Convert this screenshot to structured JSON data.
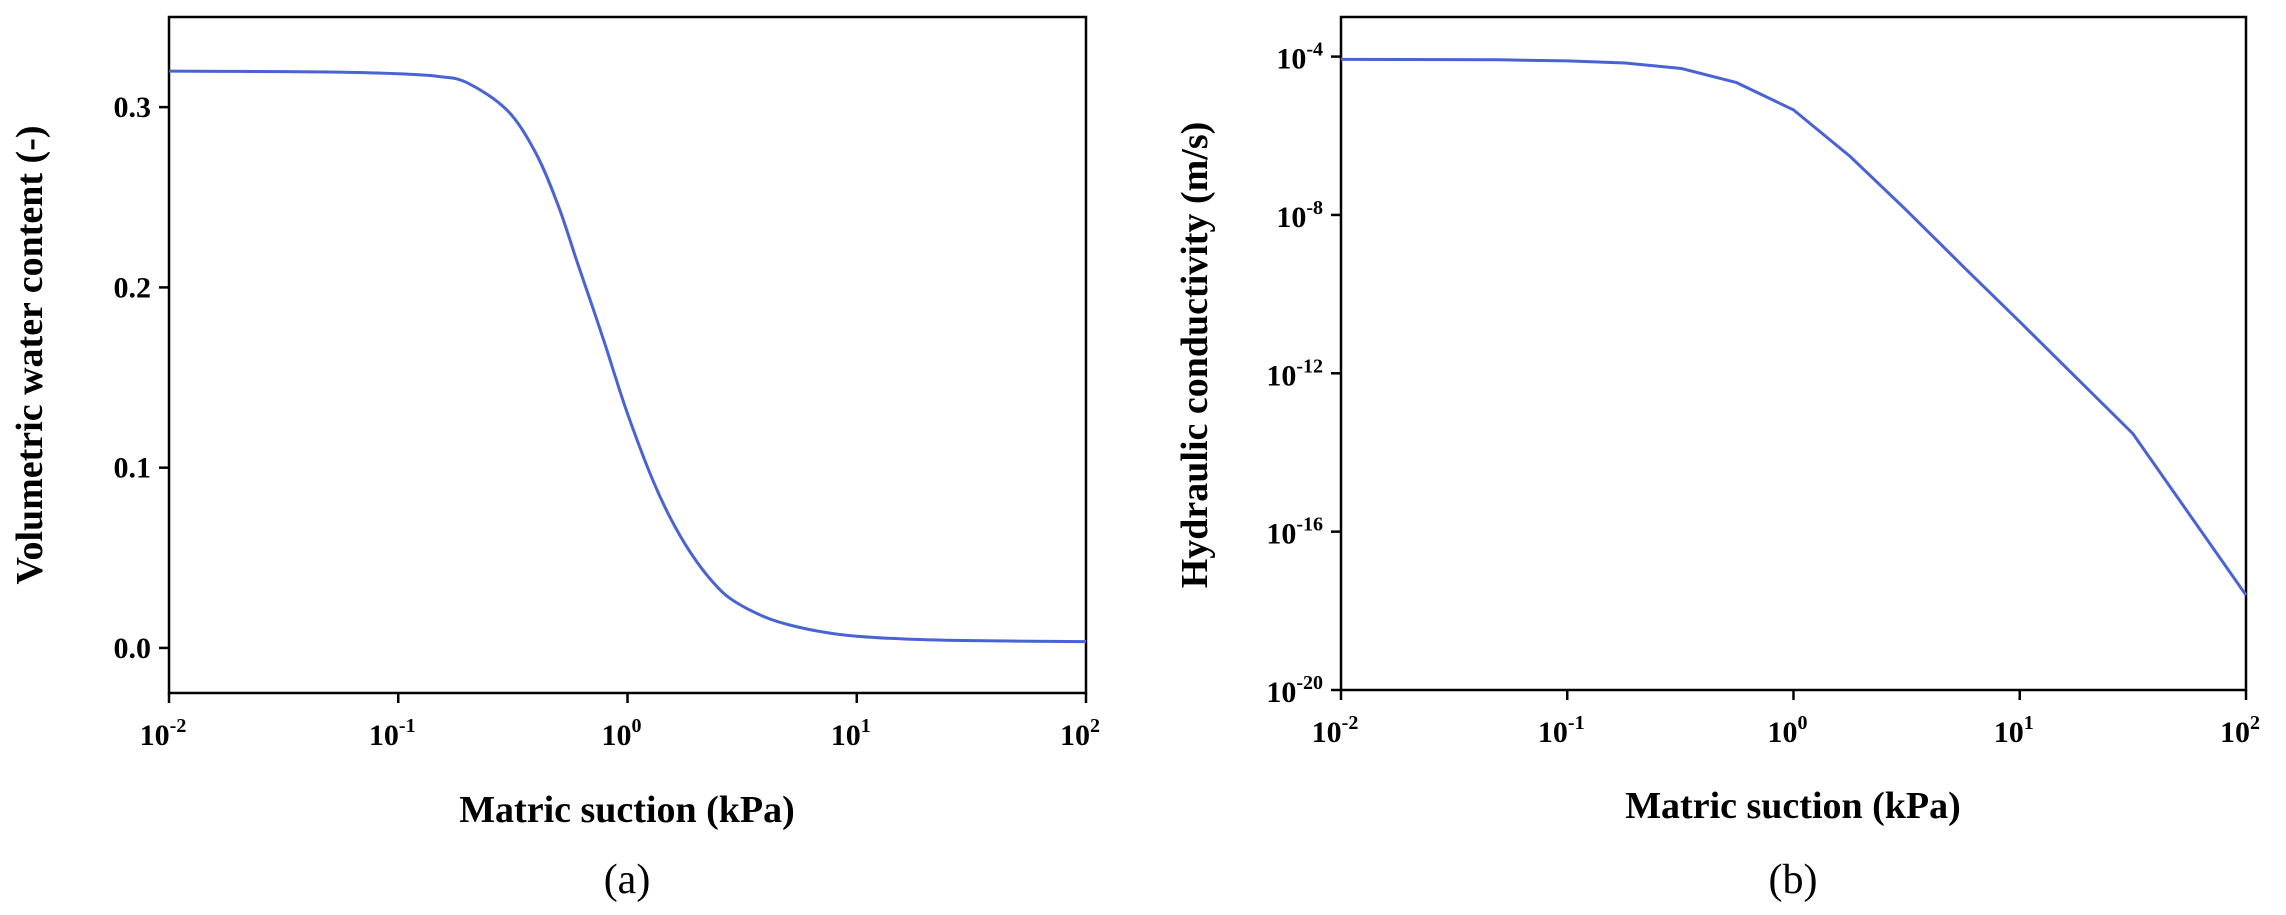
{
  "chart_data": [
    {
      "type": "line",
      "panel_label": "(a)",
      "xlabel": "Matric suction  (kPa)",
      "ylabel": "Volumetric water content (-)",
      "x_scale": "log",
      "xlim": [
        0.01,
        100
      ],
      "ylim": [
        -0.025,
        0.35
      ],
      "x_ticks": [
        {
          "base": "10",
          "exp": "-2",
          "value": 0.01
        },
        {
          "base": "10",
          "exp": "-1",
          "value": 0.1
        },
        {
          "base": "10",
          "exp": "0",
          "value": 1
        },
        {
          "base": "10",
          "exp": "1",
          "value": 10
        },
        {
          "base": "10",
          "exp": "2",
          "value": 100
        }
      ],
      "y_ticks": [
        {
          "label": "0.0",
          "value": 0.0
        },
        {
          "label": "0.1",
          "value": 0.1
        },
        {
          "label": "0.2",
          "value": 0.2
        },
        {
          "label": "0.3",
          "value": 0.3
        }
      ],
      "color": "#4a63d4",
      "x": [
        0.01,
        0.02,
        0.05,
        0.1,
        0.15,
        0.2,
        0.3,
        0.4,
        0.5,
        0.6,
        0.7,
        0.8,
        1.0,
        1.3,
        1.6,
        2.0,
        2.5,
        3.0,
        4.0,
        5.0,
        7.0,
        10.0,
        20.0,
        50.0,
        100.0
      ],
      "y": [
        0.32,
        0.3198,
        0.3195,
        0.3185,
        0.317,
        0.3135,
        0.298,
        0.274,
        0.245,
        0.215,
        0.19,
        0.168,
        0.13,
        0.092,
        0.068,
        0.048,
        0.033,
        0.025,
        0.017,
        0.013,
        0.009,
        0.0065,
        0.0045,
        0.0038,
        0.0035
      ]
    },
    {
      "type": "line",
      "panel_label": "(b)",
      "xlabel": "Matric suction  (kPa)",
      "ylabel": "Hydraulic conductivity  (m/s)",
      "x_scale": "log",
      "y_scale": "log",
      "xlim": [
        0.01,
        100
      ],
      "ylim": [
        1e-20,
        0.001
      ],
      "x_ticks": [
        {
          "base": "10",
          "exp": "-2",
          "value": 0.01
        },
        {
          "base": "10",
          "exp": "-1",
          "value": 0.1
        },
        {
          "base": "10",
          "exp": "0",
          "value": 1
        },
        {
          "base": "10",
          "exp": "1",
          "value": 10
        },
        {
          "base": "10",
          "exp": "2",
          "value": 100
        }
      ],
      "y_ticks": [
        {
          "base": "10",
          "exp": "-20",
          "value": 1e-20
        },
        {
          "base": "10",
          "exp": "-16",
          "value": 1e-16
        },
        {
          "base": "10",
          "exp": "-12",
          "value": 1e-12
        },
        {
          "base": "10",
          "exp": "-8",
          "value": 1e-08
        },
        {
          "base": "10",
          "exp": "-4",
          "value": 0.0001
        }
      ],
      "color": "#4a63d4",
      "x": [
        0.01,
        0.05,
        0.1,
        0.18,
        0.32,
        0.56,
        1.0,
        1.78,
        3.16,
        5.62,
        10.0,
        31.6,
        100.0
      ],
      "y": [
        8.5e-05,
        8.3e-05,
        7.8e-05,
        6.9e-05,
        5e-05,
        2.2e-05,
        4.5e-06,
        3e-07,
        1.3e-08,
        5e-10,
        2e-11,
        3e-14,
        2.5e-18
      ]
    }
  ]
}
